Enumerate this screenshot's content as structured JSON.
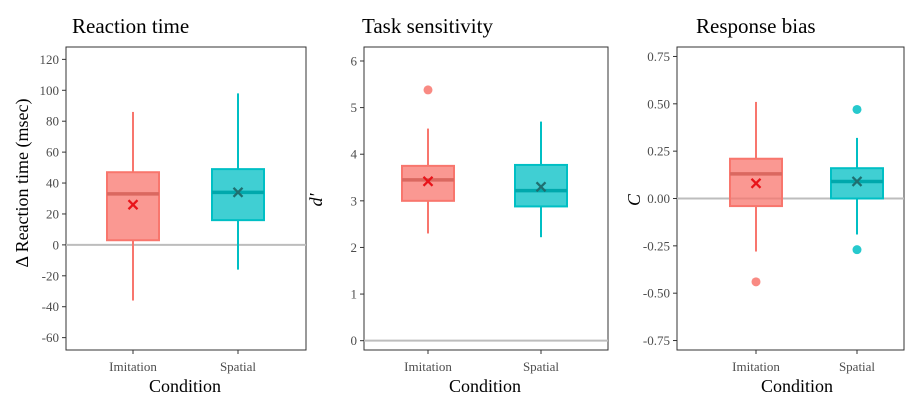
{
  "chart_data": [
    {
      "type": "box",
      "title": "Reaction time",
      "xlabel": "Condition",
      "ylabel": "Δ Reaction time (msec)",
      "ylabel_italic": false,
      "ylim": [
        -68,
        128
      ],
      "yticks": [
        -60,
        -40,
        -20,
        0,
        20,
        40,
        60,
        80,
        100,
        120
      ],
      "ytick_labels": [
        "-60",
        "-40",
        "-20",
        "0",
        "20",
        "40",
        "60",
        "80",
        "100",
        "120"
      ],
      "reference_line": 0,
      "categories": [
        "Imitation",
        "Spatial"
      ],
      "boxes": [
        {
          "name": "Imitation",
          "color": "#f8766d",
          "whisker_low": -36,
          "q1": 3,
          "median": 33,
          "q3": 47,
          "whisker_high": 86,
          "mean": 26,
          "outliers": []
        },
        {
          "name": "Spatial",
          "color": "#00bfc4",
          "whisker_low": -16,
          "q1": 16,
          "median": 34,
          "q3": 49,
          "whisker_high": 98,
          "mean": 34,
          "outliers": []
        }
      ]
    },
    {
      "type": "box",
      "title": "Task sensitivity",
      "xlabel": "Condition",
      "ylabel": "d'",
      "ylabel_italic": true,
      "ylim": [
        -0.2,
        6.3
      ],
      "yticks": [
        0,
        1,
        2,
        3,
        4,
        5,
        6
      ],
      "ytick_labels": [
        "0",
        "1",
        "2",
        "3",
        "4",
        "5",
        "6"
      ],
      "reference_line": 0,
      "categories": [
        "Imitation",
        "Spatial"
      ],
      "boxes": [
        {
          "name": "Imitation",
          "color": "#f8766d",
          "whisker_low": 2.3,
          "q1": 3.0,
          "median": 3.45,
          "q3": 3.75,
          "whisker_high": 4.55,
          "mean": 3.42,
          "outliers": [
            5.38
          ]
        },
        {
          "name": "Spatial",
          "color": "#00bfc4",
          "whisker_low": 2.22,
          "q1": 2.88,
          "median": 3.22,
          "q3": 3.77,
          "whisker_high": 4.7,
          "mean": 3.3,
          "outliers": []
        }
      ]
    },
    {
      "type": "box",
      "title": "Response bias",
      "xlabel": "Condition",
      "ylabel": "C",
      "ylabel_italic": true,
      "ylim": [
        -0.8,
        0.8
      ],
      "yticks": [
        -0.75,
        -0.5,
        -0.25,
        0,
        0.25,
        0.5,
        0.75
      ],
      "ytick_labels": [
        "-0.75",
        "-0.50",
        "-0.25",
        "0.00",
        "0.25",
        "0.50",
        "0.75"
      ],
      "reference_line": 0,
      "categories": [
        "Imitation",
        "Spatial"
      ],
      "boxes": [
        {
          "name": "Imitation",
          "color": "#f8766d",
          "whisker_low": -0.28,
          "q1": -0.04,
          "median": 0.13,
          "q3": 0.21,
          "whisker_high": 0.51,
          "mean": 0.08,
          "outliers": [
            -0.44
          ]
        },
        {
          "name": "Spatial",
          "color": "#00bfc4",
          "whisker_low": -0.19,
          "q1": 0.0,
          "median": 0.09,
          "q3": 0.16,
          "whisker_high": 0.32,
          "mean": 0.09,
          "outliers": [
            0.47,
            -0.27
          ]
        }
      ]
    }
  ]
}
